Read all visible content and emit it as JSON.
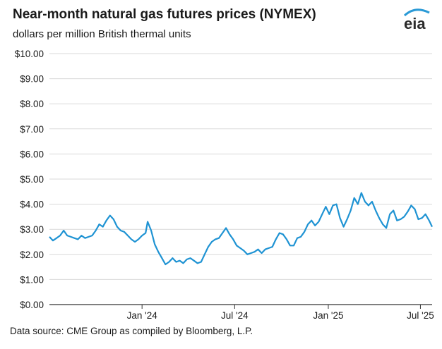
{
  "header": {
    "title": "Near-month natural gas futures prices (NYMEX)",
    "subtitle": "dollars per million British thermal units",
    "logo_text": "eia"
  },
  "footer": {
    "source": "Data source: CME Group as compiled by Bloomberg, L.P."
  },
  "colors": {
    "line": "#1f93d3",
    "grid": "#d9d9d9",
    "axis": "#333333",
    "logo_arc": "#2a9ad6",
    "logo_text": "#2b2b2b"
  },
  "chart_data": {
    "type": "line",
    "title": "Near-month natural gas futures prices (NYMEX)",
    "ylabel": "dollars per million British thermal units",
    "xlabel": "",
    "xlim": [
      "2023-07-03",
      "2025-07-24"
    ],
    "ylim": [
      0,
      10
    ],
    "grid": "horizontal",
    "y_ticks": [
      0,
      1,
      2,
      3,
      4,
      5,
      6,
      7,
      8,
      9,
      10
    ],
    "y_tick_labels": [
      "$0.00",
      "$1.00",
      "$2.00",
      "$3.00",
      "$4.00",
      "$5.00",
      "$6.00",
      "$7.00",
      "$8.00",
      "$9.00",
      "$10.00"
    ],
    "x_ticks": [
      "2024-01-01",
      "2024-07-01",
      "2025-01-01",
      "2025-07-01"
    ],
    "x_tick_labels": [
      "Jan '24",
      "Jul '24",
      "Jan '25",
      "Jul '25"
    ],
    "series": [
      {
        "points": [
          [
            "2023-07-03",
            2.7
          ],
          [
            "2023-07-10",
            2.55
          ],
          [
            "2023-07-17",
            2.65
          ],
          [
            "2023-07-24",
            2.75
          ],
          [
            "2023-07-31",
            2.95
          ],
          [
            "2023-08-07",
            2.75
          ],
          [
            "2023-08-14",
            2.7
          ],
          [
            "2023-08-21",
            2.65
          ],
          [
            "2023-08-28",
            2.6
          ],
          [
            "2023-09-04",
            2.75
          ],
          [
            "2023-09-11",
            2.65
          ],
          [
            "2023-09-18",
            2.7
          ],
          [
            "2023-09-25",
            2.75
          ],
          [
            "2023-10-02",
            2.95
          ],
          [
            "2023-10-09",
            3.2
          ],
          [
            "2023-10-16",
            3.1
          ],
          [
            "2023-10-23",
            3.35
          ],
          [
            "2023-10-30",
            3.55
          ],
          [
            "2023-11-06",
            3.4
          ],
          [
            "2023-11-13",
            3.1
          ],
          [
            "2023-11-20",
            2.95
          ],
          [
            "2023-11-27",
            2.9
          ],
          [
            "2023-12-04",
            2.75
          ],
          [
            "2023-12-11",
            2.6
          ],
          [
            "2023-12-18",
            2.5
          ],
          [
            "2023-12-25",
            2.6
          ],
          [
            "2024-01-01",
            2.75
          ],
          [
            "2024-01-08",
            2.85
          ],
          [
            "2024-01-12",
            3.3
          ],
          [
            "2024-01-19",
            2.95
          ],
          [
            "2024-01-26",
            2.4
          ],
          [
            "2024-02-02",
            2.1
          ],
          [
            "2024-02-09",
            1.85
          ],
          [
            "2024-02-16",
            1.6
          ],
          [
            "2024-02-23",
            1.7
          ],
          [
            "2024-03-01",
            1.85
          ],
          [
            "2024-03-08",
            1.7
          ],
          [
            "2024-03-15",
            1.75
          ],
          [
            "2024-03-22",
            1.65
          ],
          [
            "2024-03-29",
            1.8
          ],
          [
            "2024-04-05",
            1.85
          ],
          [
            "2024-04-12",
            1.75
          ],
          [
            "2024-04-19",
            1.65
          ],
          [
            "2024-04-26",
            1.7
          ],
          [
            "2024-05-03",
            2.0
          ],
          [
            "2024-05-10",
            2.3
          ],
          [
            "2024-05-17",
            2.5
          ],
          [
            "2024-05-24",
            2.6
          ],
          [
            "2024-05-31",
            2.65
          ],
          [
            "2024-06-07",
            2.85
          ],
          [
            "2024-06-14",
            3.05
          ],
          [
            "2024-06-21",
            2.8
          ],
          [
            "2024-06-28",
            2.6
          ],
          [
            "2024-07-05",
            2.35
          ],
          [
            "2024-07-12",
            2.25
          ],
          [
            "2024-07-19",
            2.15
          ],
          [
            "2024-07-26",
            2.0
          ],
          [
            "2024-08-02",
            2.05
          ],
          [
            "2024-08-09",
            2.1
          ],
          [
            "2024-08-16",
            2.2
          ],
          [
            "2024-08-23",
            2.05
          ],
          [
            "2024-08-30",
            2.2
          ],
          [
            "2024-09-06",
            2.25
          ],
          [
            "2024-09-13",
            2.3
          ],
          [
            "2024-09-20",
            2.6
          ],
          [
            "2024-09-27",
            2.85
          ],
          [
            "2024-10-04",
            2.8
          ],
          [
            "2024-10-11",
            2.6
          ],
          [
            "2024-10-18",
            2.35
          ],
          [
            "2024-10-25",
            2.35
          ],
          [
            "2024-11-01",
            2.65
          ],
          [
            "2024-11-08",
            2.7
          ],
          [
            "2024-11-15",
            2.9
          ],
          [
            "2024-11-22",
            3.2
          ],
          [
            "2024-11-29",
            3.35
          ],
          [
            "2024-12-06",
            3.15
          ],
          [
            "2024-12-13",
            3.3
          ],
          [
            "2024-12-20",
            3.6
          ],
          [
            "2024-12-27",
            3.9
          ],
          [
            "2025-01-03",
            3.6
          ],
          [
            "2025-01-10",
            3.95
          ],
          [
            "2025-01-17",
            4.0
          ],
          [
            "2025-01-24",
            3.45
          ],
          [
            "2025-01-31",
            3.1
          ],
          [
            "2025-02-07",
            3.4
          ],
          [
            "2025-02-14",
            3.75
          ],
          [
            "2025-02-21",
            4.25
          ],
          [
            "2025-02-28",
            4.0
          ],
          [
            "2025-03-07",
            4.45
          ],
          [
            "2025-03-14",
            4.1
          ],
          [
            "2025-03-21",
            3.95
          ],
          [
            "2025-03-28",
            4.1
          ],
          [
            "2025-04-04",
            3.75
          ],
          [
            "2025-04-11",
            3.45
          ],
          [
            "2025-04-18",
            3.2
          ],
          [
            "2025-04-25",
            3.05
          ],
          [
            "2025-05-02",
            3.6
          ],
          [
            "2025-05-09",
            3.75
          ],
          [
            "2025-05-16",
            3.35
          ],
          [
            "2025-05-23",
            3.4
          ],
          [
            "2025-05-30",
            3.5
          ],
          [
            "2025-06-06",
            3.7
          ],
          [
            "2025-06-13",
            3.95
          ],
          [
            "2025-06-20",
            3.8
          ],
          [
            "2025-06-27",
            3.4
          ],
          [
            "2025-07-04",
            3.45
          ],
          [
            "2025-07-11",
            3.6
          ],
          [
            "2025-07-18",
            3.35
          ],
          [
            "2025-07-24",
            3.1
          ]
        ]
      }
    ]
  }
}
